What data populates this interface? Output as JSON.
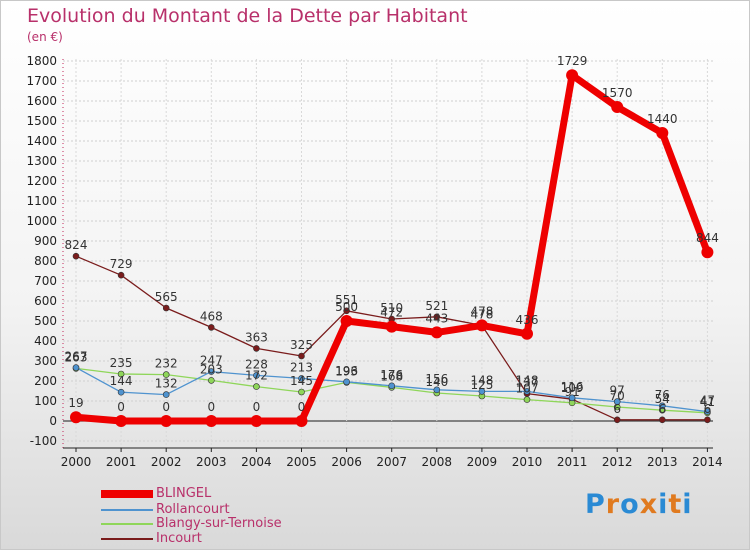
{
  "title": "Evolution du Montant de la Dette par Habitant",
  "subtitle": "(en €)",
  "logo": {
    "text": "Proxiti",
    "letters": [
      "P",
      "r",
      "o",
      "x",
      "i",
      "t",
      "i"
    ],
    "colors": [
      "#2a8ad4",
      "#e07a1f",
      "#2a8ad4",
      "#e07a1f",
      "#2a8ad4",
      "#e07a1f",
      "#2a8ad4"
    ]
  },
  "chart_data": {
    "type": "line",
    "title": "Evolution du Montant de la Dette par Habitant",
    "ylabel": "(en €)",
    "xlabel": "",
    "x": [
      "2000",
      "2001",
      "2002",
      "2003",
      "2004",
      "2005",
      "2006",
      "2007",
      "2008",
      "2009",
      "2010",
      "2011",
      "2012",
      "2013",
      "2014"
    ],
    "ylim": [
      -100,
      1800
    ],
    "yticks": [
      "-100",
      "0",
      "100",
      "200",
      "300",
      "400",
      "500",
      "600",
      "700",
      "800",
      "900",
      "1000",
      "1100",
      "1200",
      "1300",
      "1400",
      "1500",
      "1600",
      "1700",
      "1800"
    ],
    "legend_position": "bottom-left",
    "series": [
      {
        "name": "BLINGEL",
        "color": "#ee0000",
        "values": [
          19,
          0,
          0,
          0,
          0,
          0,
          500,
          472,
          443,
          478,
          436,
          1729,
          1570,
          1440,
          844
        ],
        "labels": [
          "19",
          "0",
          "0",
          "0",
          "0",
          "0",
          "500",
          "472",
          "443",
          "478",
          "436",
          "1729",
          "1570",
          "1440",
          "844"
        ]
      },
      {
        "name": "Rollancourt",
        "color": "#4f93cf",
        "values": [
          267,
          144,
          132,
          247,
          228,
          213,
          196,
          176,
          156,
          148,
          148,
          116,
          97,
          76,
          47
        ],
        "labels": [
          "267",
          "144",
          "132",
          "247",
          "228",
          "213",
          "196",
          "176",
          "156",
          "148",
          "148",
          "116",
          "97",
          "76",
          "47"
        ]
      },
      {
        "name": "Blangy-sur-Ternoise",
        "color": "#8fd65a",
        "values": [
          263,
          235,
          232,
          203,
          172,
          145,
          193,
          168,
          140,
          125,
          107,
          91,
          70,
          54,
          41
        ],
        "labels": [
          "263",
          "235",
          "232",
          "203",
          "172",
          "145",
          "193",
          "168",
          "140",
          "125",
          "107",
          "91",
          "70",
          "54",
          "41"
        ]
      },
      {
        "name": "Incourt",
        "color": "#7a1c1c",
        "values": [
          824,
          729,
          565,
          468,
          363,
          325,
          551,
          510,
          521,
          478,
          137,
          109,
          6,
          6,
          6
        ],
        "labels": [
          "824",
          "729",
          "565",
          "468",
          "363",
          "325",
          "551",
          "510",
          "521",
          "478",
          "137",
          "109",
          "6",
          "6",
          "6"
        ]
      }
    ]
  }
}
